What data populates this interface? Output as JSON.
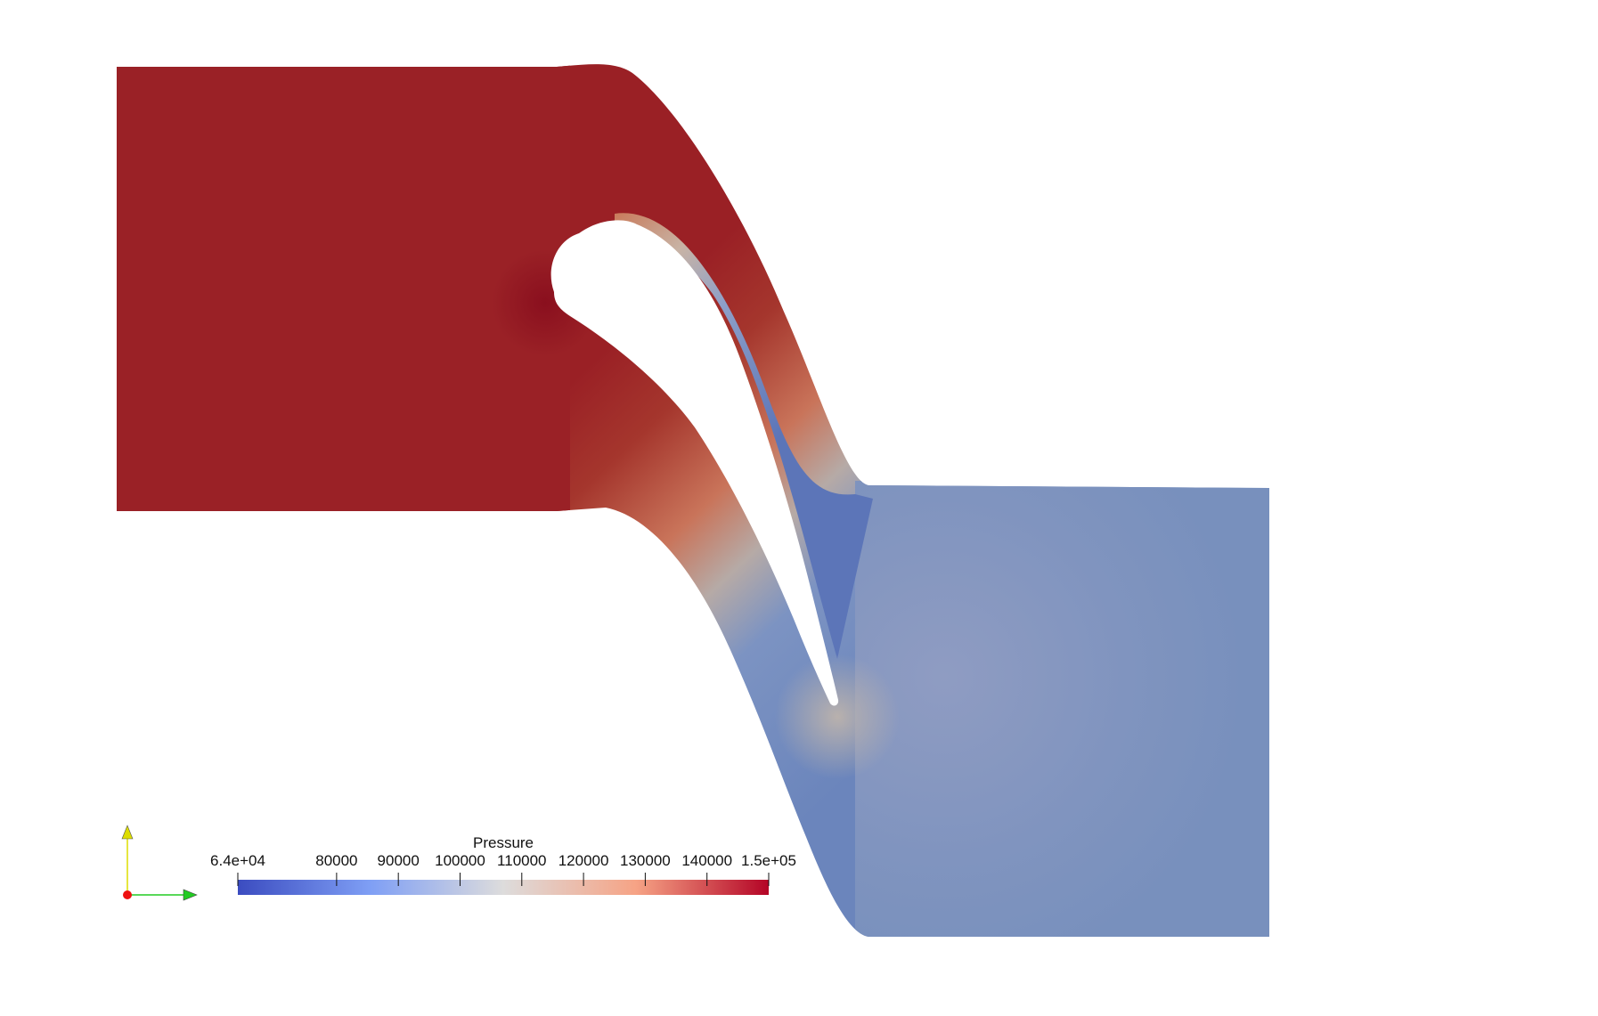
{
  "colorbar": {
    "title": "Pressure",
    "min_label": "6.4e+04",
    "max_label": "1.5e+05",
    "min": 64000,
    "max": 150000,
    "ticks": [
      {
        "value": 80000,
        "label": "80000"
      },
      {
        "value": 90000,
        "label": "90000"
      },
      {
        "value": 100000,
        "label": "100000"
      },
      {
        "value": 110000,
        "label": "110000"
      },
      {
        "value": 120000,
        "label": "120000"
      },
      {
        "value": 130000,
        "label": "130000"
      },
      {
        "value": 140000,
        "label": "140000"
      }
    ],
    "colormap": [
      "#3b4cc0",
      "#7f9ff5",
      "#dddcdc",
      "#f6a385",
      "#b40426"
    ]
  },
  "field": {
    "high_color": "#9b2226",
    "low_color": "#7b90bd"
  },
  "axes_widget": {
    "x_color": "#22cc22",
    "y_color": "#dddd00",
    "z_color": "#ee1111"
  }
}
